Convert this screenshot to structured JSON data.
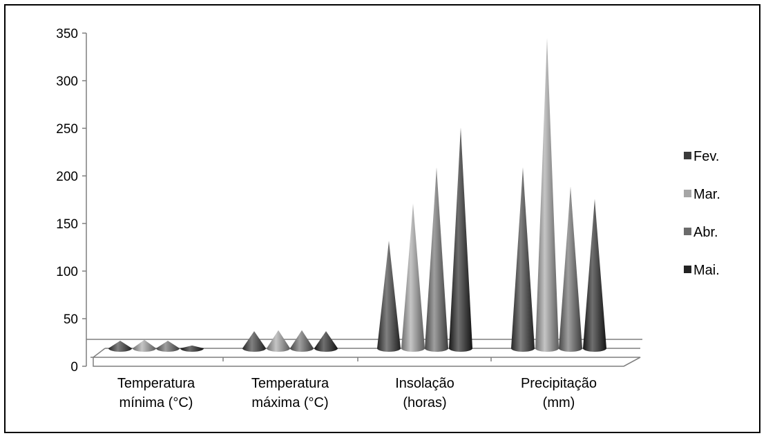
{
  "chart_data": {
    "type": "bar",
    "subtype": "3d-cone",
    "categories": [
      [
        "Temperatura",
        "mínima (°C)"
      ],
      [
        "Temperatura",
        "máxima (°C)"
      ],
      [
        "Insolação",
        "(horas)"
      ],
      [
        "Precipitação",
        "(mm)"
      ]
    ],
    "series": [
      {
        "name": "Fev.",
        "color": "#3b3b3b",
        "values": [
          8,
          18,
          113,
          190
        ]
      },
      {
        "name": "Mar.",
        "color": "#a6a6a6",
        "values": [
          9,
          19,
          152,
          326
        ]
      },
      {
        "name": "Abr.",
        "color": "#6b6b6b",
        "values": [
          8,
          19,
          190,
          170
        ]
      },
      {
        "name": "Mai.",
        "color": "#222222",
        "values": [
          3,
          18,
          232,
          157
        ]
      }
    ],
    "yticks": [
      "0",
      "50",
      "100",
      "150",
      "200",
      "250",
      "300",
      "350"
    ],
    "ylim": [
      0,
      350
    ],
    "legend_position": "right",
    "grid": false
  }
}
